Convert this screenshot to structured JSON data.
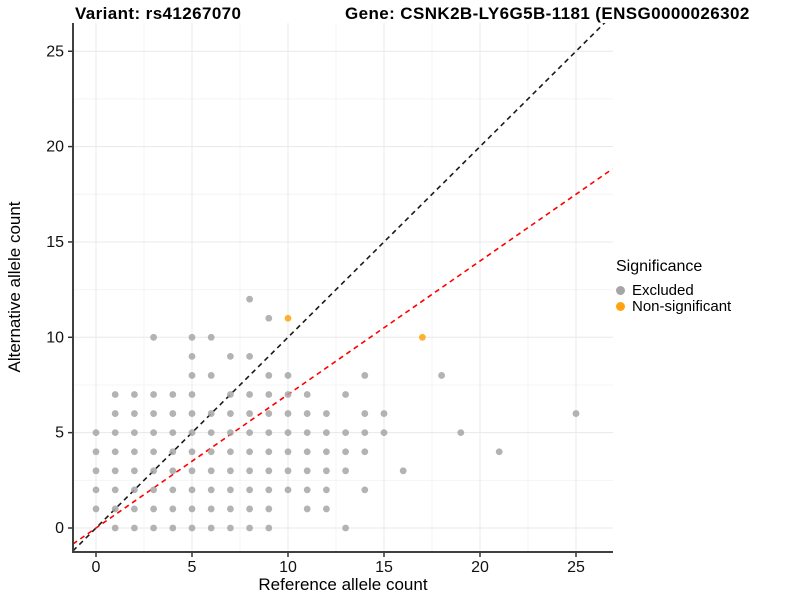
{
  "header": {
    "left_title": "Variant: rs41267070",
    "right_title": "Gene: CSNK2B-LY6G5B-1181 (ENSG0000026302"
  },
  "colors": {
    "excluded": "#a6a6a6",
    "non_significant": "#ffa310",
    "identity_line": "#1a1a1a",
    "ratio_line": "#ff0000",
    "grid_major": "#e8e8e8",
    "grid_minor": "#f4f4f4",
    "axis_line": "#404040",
    "tick_mark": "#333333",
    "tick_label": "#111111"
  },
  "chart_data": {
    "type": "scatter",
    "title_left": "Variant: rs41267070",
    "title_right": "Gene: CSNK2B-LY6G5B-1181 (ENSG0000026302",
    "xlabel": "Reference allele count",
    "ylabel": "Alternative allele count",
    "xlim": [
      -1.2,
      26.9
    ],
    "ylim": [
      -1.3,
      26.5
    ],
    "x_ticks": [
      0,
      5,
      10,
      15,
      20,
      25
    ],
    "y_ticks": [
      0,
      5,
      10,
      15,
      20,
      25
    ],
    "grid": "major+minor",
    "legend_position": "right",
    "legend": {
      "title": "Significance",
      "items": [
        {
          "label": "Excluded",
          "color_key": "excluded"
        },
        {
          "label": "Non-significant",
          "color_key": "non_significant"
        }
      ]
    },
    "series": [
      {
        "name": "Excluded",
        "color_key": "excluded",
        "points": [
          [
            8,
            12
          ],
          [
            9,
            11
          ],
          [
            3,
            10
          ],
          [
            5,
            10
          ],
          [
            6,
            10
          ],
          [
            5,
            9
          ],
          [
            7,
            9
          ],
          [
            8,
            9
          ],
          [
            5,
            8
          ],
          [
            6,
            8
          ],
          [
            9,
            8
          ],
          [
            10,
            8
          ],
          [
            14,
            8
          ],
          [
            18,
            8
          ],
          [
            1,
            7
          ],
          [
            2,
            7
          ],
          [
            3,
            7
          ],
          [
            4,
            7
          ],
          [
            5,
            7
          ],
          [
            7,
            7
          ],
          [
            8,
            7
          ],
          [
            9,
            7
          ],
          [
            10,
            7
          ],
          [
            11,
            7
          ],
          [
            13,
            7
          ],
          [
            1,
            6
          ],
          [
            2,
            6
          ],
          [
            3,
            6
          ],
          [
            4,
            6
          ],
          [
            5,
            6
          ],
          [
            6,
            6
          ],
          [
            7,
            6
          ],
          [
            8,
            6
          ],
          [
            9,
            6
          ],
          [
            10,
            6
          ],
          [
            11,
            6
          ],
          [
            12,
            6
          ],
          [
            14,
            6
          ],
          [
            15,
            6
          ],
          [
            25,
            6
          ],
          [
            0,
            5
          ],
          [
            1,
            5
          ],
          [
            2,
            5
          ],
          [
            3,
            5
          ],
          [
            4,
            5
          ],
          [
            5,
            5
          ],
          [
            6,
            5
          ],
          [
            7,
            5
          ],
          [
            8,
            5
          ],
          [
            9,
            5
          ],
          [
            10,
            5
          ],
          [
            11,
            5
          ],
          [
            12,
            5
          ],
          [
            13,
            5
          ],
          [
            14,
            5
          ],
          [
            15,
            5
          ],
          [
            19,
            5
          ],
          [
            0,
            4
          ],
          [
            1,
            4
          ],
          [
            2,
            4
          ],
          [
            3,
            4
          ],
          [
            4,
            4
          ],
          [
            5,
            4
          ],
          [
            6,
            4
          ],
          [
            7,
            4
          ],
          [
            8,
            4
          ],
          [
            9,
            4
          ],
          [
            10,
            4
          ],
          [
            11,
            4
          ],
          [
            12,
            4
          ],
          [
            13,
            4
          ],
          [
            14,
            4
          ],
          [
            21,
            4
          ],
          [
            0,
            3
          ],
          [
            1,
            3
          ],
          [
            2,
            3
          ],
          [
            3,
            3
          ],
          [
            4,
            3
          ],
          [
            5,
            3
          ],
          [
            6,
            3
          ],
          [
            7,
            3
          ],
          [
            8,
            3
          ],
          [
            9,
            3
          ],
          [
            10,
            3
          ],
          [
            11,
            3
          ],
          [
            12,
            3
          ],
          [
            13,
            3
          ],
          [
            16,
            3
          ],
          [
            0,
            2
          ],
          [
            1,
            2
          ],
          [
            2,
            2
          ],
          [
            3,
            2
          ],
          [
            4,
            2
          ],
          [
            5,
            2
          ],
          [
            6,
            2
          ],
          [
            7,
            2
          ],
          [
            8,
            2
          ],
          [
            9,
            2
          ],
          [
            10,
            2
          ],
          [
            11,
            2
          ],
          [
            12,
            2
          ],
          [
            14,
            2
          ],
          [
            0,
            1
          ],
          [
            1,
            1
          ],
          [
            2,
            1
          ],
          [
            3,
            1
          ],
          [
            4,
            1
          ],
          [
            5,
            1
          ],
          [
            6,
            1
          ],
          [
            7,
            1
          ],
          [
            8,
            1
          ],
          [
            9,
            1
          ],
          [
            11,
            1
          ],
          [
            12,
            1
          ],
          [
            1,
            0
          ],
          [
            2,
            0
          ],
          [
            3,
            0
          ],
          [
            4,
            0
          ],
          [
            5,
            0
          ],
          [
            6,
            0
          ],
          [
            7,
            0
          ],
          [
            8,
            0
          ],
          [
            9,
            0
          ],
          [
            13,
            0
          ]
        ]
      },
      {
        "name": "Non-significant",
        "color_key": "non_significant",
        "points": [
          [
            10,
            11
          ],
          [
            17,
            10
          ]
        ]
      }
    ],
    "lines": [
      {
        "name": "identity-line",
        "slope": 1,
        "intercept": 0,
        "color_key": "identity_line",
        "dashed": true
      },
      {
        "name": "expected-ratio-line",
        "slope": 0.7,
        "intercept": 0,
        "color_key": "ratio_line",
        "dashed": true
      }
    ]
  }
}
